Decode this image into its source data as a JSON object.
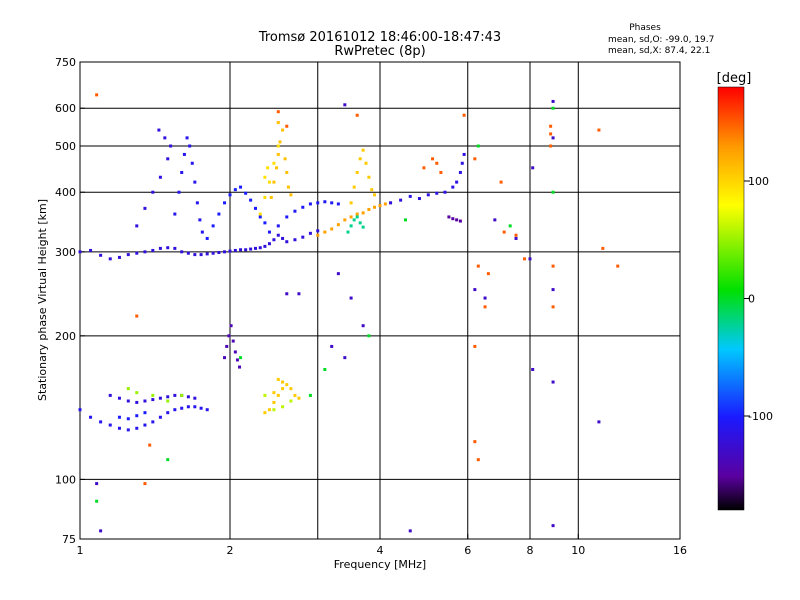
{
  "chart_data": {
    "type": "scatter",
    "title": "Tromsø 20161012 18:46:00-18:47:43",
    "subtitle": "RwPretec (8p)",
    "phase_info": {
      "heading": "Phases",
      "line_o": "mean, sd,O: -99.0, 19.7",
      "line_x": "mean, sd,X:  87.4, 22.1"
    },
    "xlabel": "Frequency [MHz]",
    "ylabel": "Stationary phase Virtual Height [km]",
    "x_scale": "log",
    "y_scale": "log",
    "xlim": [
      1,
      16
    ],
    "ylim": [
      75,
      750
    ],
    "x_ticks": [
      1,
      2,
      4,
      6,
      8,
      10,
      16
    ],
    "x_tick_labels": [
      "1",
      "2",
      "4",
      "6",
      "8",
      "10",
      "16"
    ],
    "x_grid": [
      2,
      3,
      4,
      6,
      8,
      10
    ],
    "y_ticks": [
      75,
      100,
      200,
      300,
      400,
      500,
      600,
      750
    ],
    "y_tick_labels": [
      "75",
      "100",
      "200",
      "300",
      "400",
      "500",
      "600",
      "750"
    ],
    "y_grid": [
      100,
      200,
      300,
      400,
      500,
      600
    ],
    "grid": true,
    "colorbar": {
      "label": "[deg]",
      "min": -180,
      "max": 180,
      "ticks": [
        100,
        0,
        -100
      ],
      "tick_labels": [
        "100",
        "0",
        "-100"
      ]
    },
    "series": [
      {
        "points": [
          [
            1.0,
            300
          ],
          [
            1.05,
            302
          ],
          [
            1.1,
            295
          ],
          [
            1.15,
            290
          ],
          [
            1.2,
            292
          ],
          [
            1.25,
            296
          ],
          [
            1.3,
            298
          ],
          [
            1.35,
            300
          ],
          [
            1.4,
            302
          ],
          [
            1.45,
            305
          ],
          [
            1.5,
            306
          ],
          [
            1.55,
            305
          ],
          [
            1.6,
            300
          ],
          [
            1.65,
            298
          ],
          [
            1.7,
            296
          ],
          [
            1.75,
            296
          ],
          [
            1.8,
            297
          ],
          [
            1.85,
            298
          ],
          [
            1.9,
            299
          ],
          [
            1.95,
            300
          ],
          [
            2.0,
            301
          ],
          [
            2.05,
            302
          ],
          [
            2.1,
            303
          ],
          [
            2.15,
            303
          ],
          [
            2.2,
            304
          ],
          [
            2.25,
            305
          ],
          [
            2.3,
            306
          ],
          [
            2.35,
            308
          ],
          [
            2.4,
            312
          ],
          [
            2.45,
            318
          ],
          [
            2.5,
            325
          ],
          [
            2.55,
            320
          ],
          [
            2.6,
            315
          ],
          [
            2.7,
            318
          ],
          [
            2.8,
            322
          ],
          [
            2.9,
            328
          ],
          [
            3.0,
            332
          ]
        ],
        "phase": -120
      },
      {
        "points": [
          [
            1.55,
            360
          ],
          [
            1.58,
            400
          ],
          [
            1.6,
            440
          ],
          [
            1.62,
            480
          ],
          [
            1.64,
            520
          ],
          [
            1.66,
            500
          ],
          [
            1.68,
            460
          ],
          [
            1.7,
            420
          ],
          [
            1.72,
            380
          ],
          [
            1.74,
            350
          ],
          [
            1.76,
            330
          ]
        ],
        "phase": -110
      },
      {
        "points": [
          [
            1.8,
            320
          ],
          [
            1.85,
            340
          ],
          [
            1.9,
            360
          ],
          [
            1.95,
            380
          ],
          [
            2.0,
            395
          ],
          [
            2.05,
            405
          ],
          [
            2.1,
            410
          ],
          [
            2.15,
            398
          ],
          [
            2.2,
            385
          ],
          [
            2.25,
            370
          ],
          [
            2.3,
            355
          ],
          [
            2.35,
            345
          ]
        ],
        "phase": -100
      },
      {
        "points": [
          [
            1.3,
            340
          ],
          [
            1.35,
            370
          ],
          [
            1.4,
            400
          ],
          [
            1.45,
            430
          ],
          [
            1.5,
            470
          ],
          [
            1.52,
            500
          ],
          [
            1.48,
            520
          ],
          [
            1.44,
            540
          ]
        ],
        "phase": -118
      },
      {
        "points": [
          [
            2.4,
            330
          ],
          [
            2.5,
            340
          ],
          [
            2.6,
            355
          ],
          [
            2.7,
            365
          ],
          [
            2.8,
            372
          ],
          [
            2.9,
            378
          ],
          [
            3.0,
            380
          ],
          [
            3.1,
            382
          ],
          [
            3.2,
            380
          ],
          [
            3.3,
            378
          ]
        ],
        "phase": -105
      },
      {
        "points": [
          [
            2.42,
            390
          ],
          [
            2.45,
            420
          ],
          [
            2.48,
            450
          ],
          [
            2.5,
            480
          ],
          [
            2.52,
            510
          ],
          [
            2.55,
            540
          ],
          [
            2.5,
            560
          ],
          [
            2.58,
            470
          ],
          [
            2.6,
            440
          ],
          [
            2.62,
            410
          ],
          [
            2.65,
            395
          ]
        ],
        "phase": 110
      },
      {
        "points": [
          [
            2.3,
            360
          ],
          [
            2.35,
            390
          ],
          [
            2.4,
            420
          ],
          [
            2.45,
            460
          ],
          [
            2.5,
            500
          ],
          [
            2.35,
            430
          ],
          [
            2.38,
            450
          ]
        ],
        "phase": 95
      },
      {
        "points": [
          [
            3.0,
            325
          ],
          [
            3.1,
            330
          ],
          [
            3.2,
            335
          ],
          [
            3.3,
            342
          ],
          [
            3.4,
            350
          ],
          [
            3.5,
            355
          ],
          [
            3.6,
            360
          ],
          [
            3.7,
            362
          ],
          [
            3.8,
            368
          ],
          [
            3.9,
            372
          ],
          [
            4.0,
            375
          ],
          [
            4.1,
            378
          ],
          [
            4.2,
            380
          ]
        ],
        "phase": 125
      },
      {
        "points": [
          [
            3.5,
            380
          ],
          [
            3.55,
            410
          ],
          [
            3.6,
            440
          ],
          [
            3.65,
            470
          ],
          [
            3.7,
            490
          ],
          [
            3.75,
            460
          ],
          [
            3.8,
            430
          ],
          [
            3.85,
            405
          ],
          [
            3.9,
            395
          ]
        ],
        "phase": 105
      },
      {
        "points": [
          [
            3.45,
            330
          ],
          [
            3.5,
            340
          ],
          [
            3.55,
            350
          ],
          [
            3.6,
            355
          ],
          [
            3.65,
            345
          ],
          [
            3.7,
            338
          ]
        ],
        "phase": -20
      },
      {
        "points": [
          [
            4.2,
            380
          ],
          [
            4.4,
            385
          ],
          [
            4.6,
            392
          ],
          [
            4.8,
            388
          ],
          [
            5.0,
            395
          ],
          [
            5.2,
            398
          ],
          [
            5.4,
            400
          ],
          [
            5.6,
            410
          ],
          [
            5.7,
            420
          ],
          [
            5.8,
            440
          ],
          [
            5.85,
            460
          ],
          [
            5.9,
            480
          ]
        ],
        "phase": -115
      },
      {
        "points": [
          [
            5.1,
            470
          ],
          [
            5.2,
            460
          ],
          [
            4.9,
            450
          ],
          [
            5.3,
            440
          ]
        ],
        "phase": 150
      },
      {
        "points": [
          [
            5.5,
            355
          ],
          [
            5.6,
            352
          ],
          [
            5.7,
            350
          ],
          [
            5.8,
            348
          ]
        ],
        "phase": -150
      },
      {
        "points": [
          [
            1.0,
            140
          ],
          [
            1.05,
            135
          ],
          [
            1.1,
            132
          ],
          [
            1.15,
            130
          ],
          [
            1.2,
            128
          ],
          [
            1.25,
            127
          ],
          [
            1.3,
            128
          ],
          [
            1.35,
            130
          ],
          [
            1.4,
            132
          ],
          [
            1.45,
            135
          ],
          [
            1.5,
            138
          ],
          [
            1.55,
            140
          ],
          [
            1.6,
            141
          ],
          [
            1.65,
            142
          ],
          [
            1.7,
            142
          ],
          [
            1.75,
            141
          ],
          [
            1.8,
            140
          ]
        ],
        "phase": -110
      },
      {
        "points": [
          [
            1.15,
            150
          ],
          [
            1.2,
            148
          ],
          [
            1.25,
            146
          ],
          [
            1.3,
            145
          ],
          [
            1.35,
            146
          ],
          [
            1.4,
            147
          ],
          [
            1.45,
            148
          ],
          [
            1.5,
            149
          ],
          [
            1.55,
            150
          ],
          [
            1.6,
            150
          ],
          [
            1.65,
            149
          ],
          [
            1.7,
            148
          ]
        ],
        "phase": -120
      },
      {
        "points": [
          [
            1.2,
            135
          ],
          [
            1.25,
            134
          ],
          [
            1.3,
            136
          ],
          [
            1.35,
            138
          ]
        ],
        "phase": -100
      },
      {
        "points": [
          [
            1.95,
            180
          ],
          [
            1.97,
            190
          ],
          [
            1.99,
            200
          ],
          [
            2.01,
            210
          ],
          [
            2.03,
            195
          ],
          [
            2.05,
            185
          ],
          [
            2.07,
            178
          ],
          [
            2.09,
            172
          ]
        ],
        "phase": -140
      },
      {
        "points": [
          [
            2.35,
            138
          ],
          [
            2.4,
            140
          ],
          [
            2.45,
            145
          ],
          [
            2.5,
            150
          ],
          [
            2.55,
            155
          ],
          [
            2.6,
            158
          ],
          [
            2.65,
            155
          ],
          [
            2.7,
            150
          ],
          [
            2.75,
            148
          ],
          [
            2.5,
            162
          ],
          [
            2.55,
            160
          ],
          [
            2.45,
            152
          ]
        ],
        "phase": 105
      },
      {
        "points": [
          [
            2.45,
            140
          ],
          [
            2.55,
            142
          ],
          [
            2.65,
            146
          ],
          [
            2.35,
            150
          ]
        ],
        "phase": 60
      },
      {
        "points": [
          [
            1.25,
            155
          ],
          [
            1.3,
            152
          ],
          [
            1.5,
            146
          ],
          [
            1.4,
            150
          ],
          [
            1.6,
            150
          ]
        ],
        "phase": 50
      },
      {
        "points": [
          [
            1.08,
            640
          ],
          [
            1.3,
            220
          ],
          [
            1.35,
            98
          ],
          [
            1.38,
            118
          ],
          [
            2.6,
            550
          ],
          [
            2.5,
            590
          ],
          [
            3.6,
            580
          ],
          [
            5.9,
            580
          ],
          [
            6.2,
            470
          ],
          [
            6.2,
            190
          ],
          [
            6.2,
            120
          ],
          [
            6.3,
            280
          ],
          [
            6.3,
            110
          ],
          [
            6.5,
            230
          ],
          [
            6.6,
            270
          ],
          [
            7.0,
            420
          ],
          [
            7.1,
            330
          ],
          [
            7.5,
            325
          ],
          [
            7.8,
            290
          ],
          [
            8.8,
            550
          ],
          [
            8.8,
            530
          ],
          [
            8.9,
            280
          ],
          [
            8.9,
            230
          ],
          [
            11.0,
            540
          ],
          [
            11.2,
            305
          ],
          [
            12.0,
            280
          ],
          [
            8.8,
            500
          ]
        ],
        "phase": 150
      },
      {
        "points": [
          [
            1.08,
            98
          ],
          [
            1.1,
            78
          ],
          [
            3.3,
            270
          ],
          [
            3.7,
            210
          ],
          [
            2.6,
            245
          ],
          [
            2.75,
            245
          ],
          [
            3.5,
            240
          ],
          [
            3.4,
            610
          ],
          [
            3.2,
            190
          ],
          [
            3.4,
            180
          ],
          [
            4.6,
            78
          ],
          [
            6.2,
            250
          ],
          [
            6.5,
            240
          ],
          [
            6.8,
            350
          ],
          [
            7.5,
            320
          ],
          [
            8.0,
            290
          ],
          [
            8.1,
            170
          ],
          [
            8.1,
            450
          ],
          [
            8.9,
            620
          ],
          [
            8.9,
            520
          ],
          [
            8.9,
            160
          ],
          [
            8.9,
            80
          ],
          [
            11.0,
            132
          ],
          [
            8.9,
            250
          ]
        ],
        "phase": -130
      },
      {
        "points": [
          [
            1.08,
            90
          ],
          [
            1.5,
            110
          ],
          [
            2.1,
            180
          ],
          [
            2.9,
            150
          ],
          [
            3.1,
            170
          ],
          [
            3.8,
            200
          ],
          [
            4.5,
            350
          ],
          [
            6.3,
            500
          ],
          [
            7.3,
            340
          ],
          [
            8.9,
            400
          ],
          [
            8.9,
            600
          ]
        ],
        "phase": 0
      }
    ]
  }
}
